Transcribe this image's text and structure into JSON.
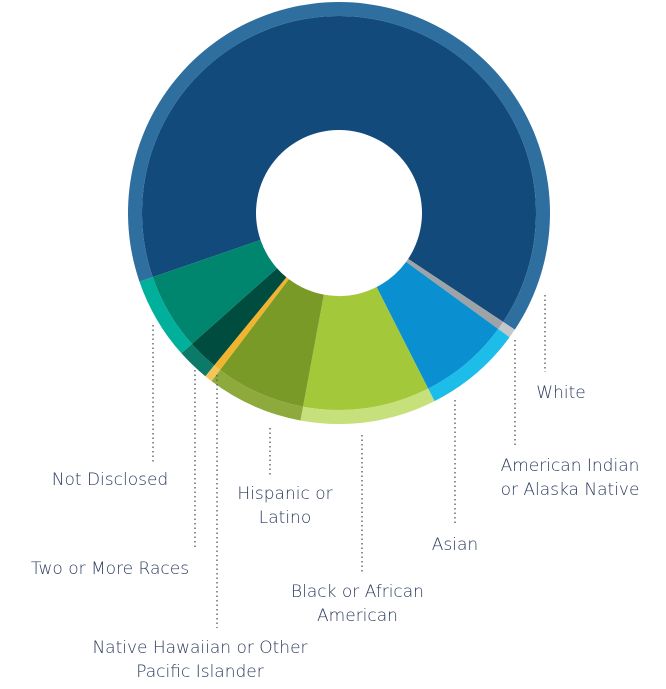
{
  "chart_data": {
    "type": "donut",
    "categories": [
      "White",
      "American Indian or Alaska Native",
      "Asian",
      "Black or African American",
      "Hispanic or Latino",
      "Native Hawaiian or Other Pacific Islander",
      "Two or More Races",
      "Not Disclosed"
    ],
    "values": [
      64.6,
      0.7,
      7.5,
      10.4,
      7.4,
      0.6,
      2.5,
      6.3
    ],
    "colors": [
      "#134a7c",
      "#9ea3a8",
      "#0a8fd0",
      "#a3c93a",
      "#7a9a28",
      "#f1b42f",
      "#004d40",
      "#00856f"
    ],
    "rim_colors": [
      "#2e6fa0",
      "#c3c7cb",
      "#1cbde9",
      "#c6e07c",
      "#8eaa3c",
      "#f5c558",
      "#0b7a69",
      "#00b09b"
    ]
  }
}
